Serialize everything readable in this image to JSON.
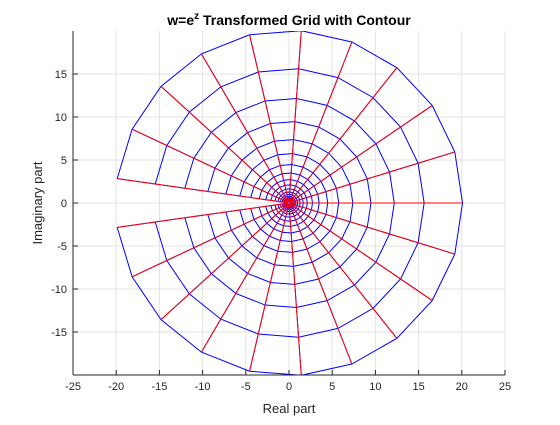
{
  "chart_data": {
    "type": "line",
    "title_prefix": "w=e",
    "title_superscript": "z",
    "title_suffix": " Transformed Grid with Contour",
    "xlabel": "Real part",
    "ylabel": "Imaginary part",
    "xlim": [
      -25,
      25
    ],
    "ylim": [
      -20,
      20
    ],
    "xticks": [
      -25,
      -20,
      -15,
      -10,
      -5,
      0,
      5,
      10,
      15,
      20,
      25
    ],
    "yticks": [
      -15,
      -10,
      -5,
      0,
      5,
      10,
      15
    ],
    "grid": true,
    "mapping": "w = exp(z)",
    "domain": {
      "re_z_range": [
        -2,
        3
      ],
      "im_z_range": [
        -3.0,
        3.0
      ],
      "re_z_lines": 21,
      "im_z_lines": 21
    },
    "series": [
      {
        "color": "#0000ff",
        "values": "images of lines Im(z) = const (rays) and Re(z) = const (circles)"
      },
      {
        "color": "#ff0000",
        "values": "contour lines Im(z) = const"
      }
    ]
  }
}
